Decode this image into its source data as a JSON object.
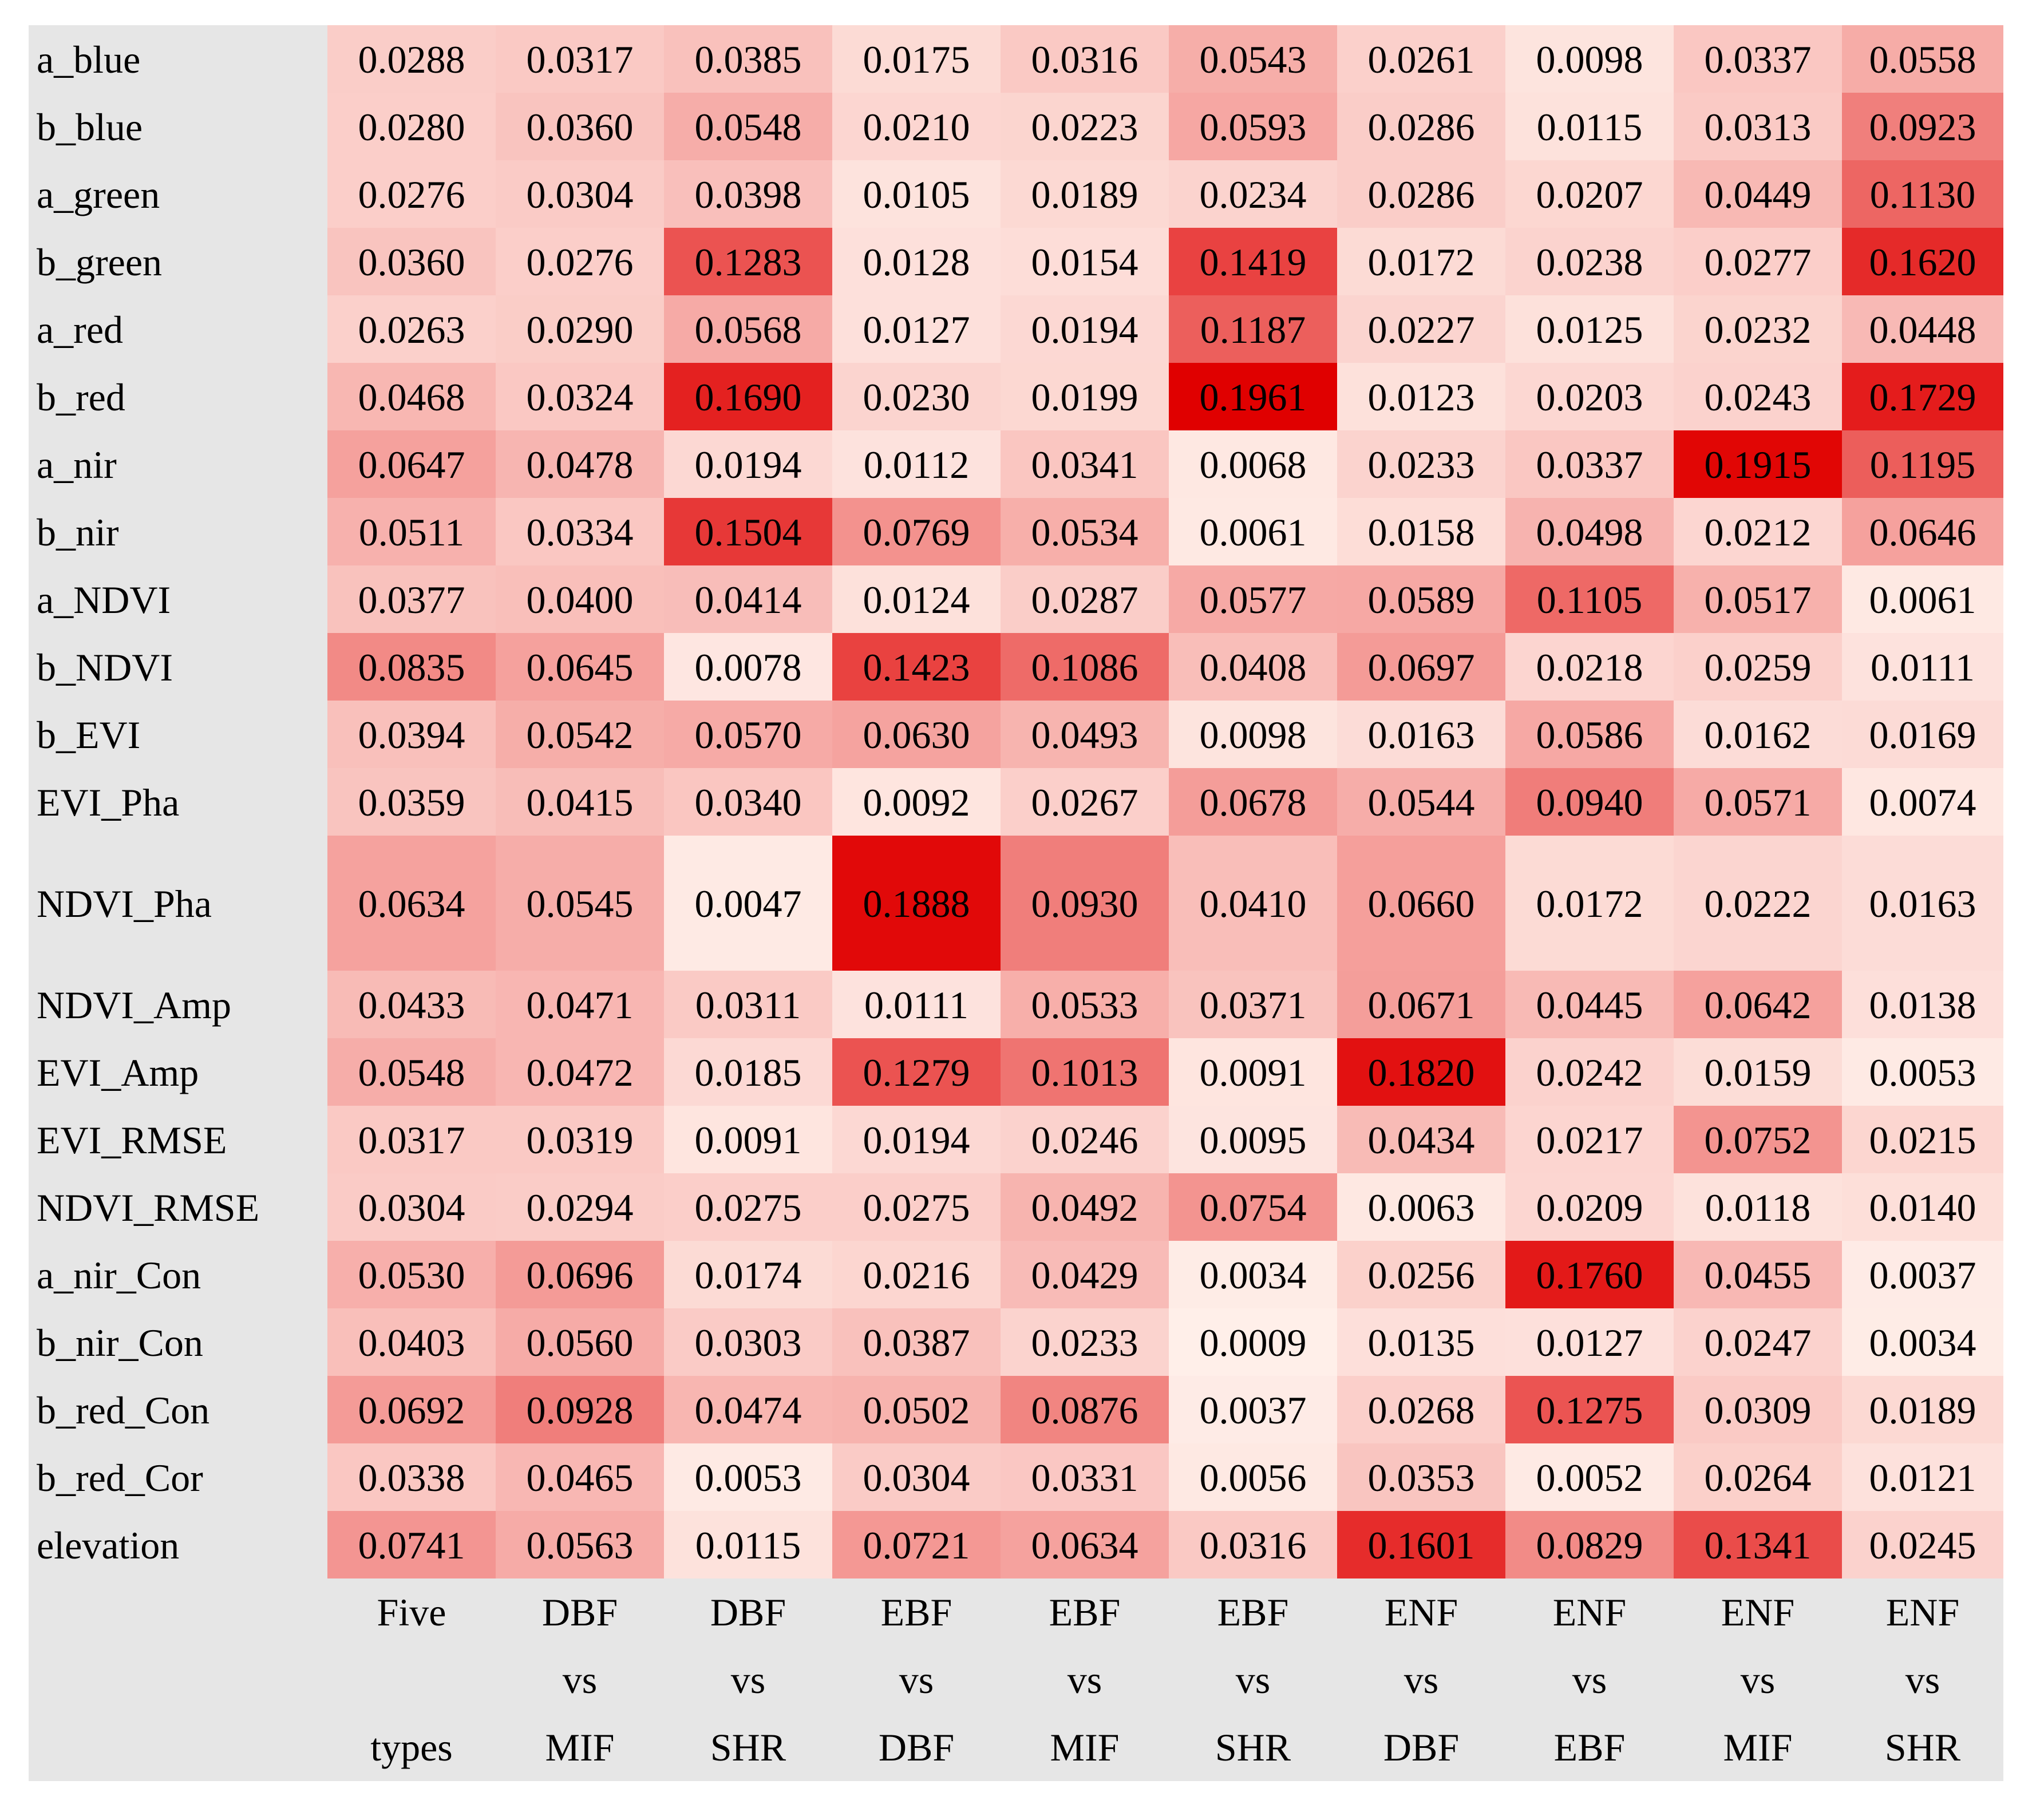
{
  "chart_data": {
    "type": "heatmap",
    "title": "",
    "colorscale": {
      "low": "#fff0ea",
      "high": "#e00000",
      "vmin": 0.0,
      "vmax": 0.1961
    },
    "columns": [
      {
        "line1": "Five",
        "line2": "",
        "line3": "types"
      },
      {
        "line1": "DBF",
        "line2": "vs",
        "line3": "MIF"
      },
      {
        "line1": "DBF",
        "line2": "vs",
        "line3": "SHR"
      },
      {
        "line1": "EBF",
        "line2": "vs",
        "line3": "DBF"
      },
      {
        "line1": "EBF",
        "line2": "vs",
        "line3": "MIF"
      },
      {
        "line1": "EBF",
        "line2": "vs",
        "line3": "SHR"
      },
      {
        "line1": "ENF",
        "line2": "vs",
        "line3": "DBF"
      },
      {
        "line1": "ENF",
        "line2": "vs",
        "line3": "EBF"
      },
      {
        "line1": "ENF",
        "line2": "vs",
        "line3": "MIF"
      },
      {
        "line1": "ENF",
        "line2": "vs",
        "line3": "SHR"
      }
    ],
    "rows": [
      {
        "label": "a_blue",
        "values": [
          "0.0288",
          "0.0317",
          "0.0385",
          "0.0175",
          "0.0316",
          "0.0543",
          "0.0261",
          "0.0098",
          "0.0337",
          "0.0558"
        ]
      },
      {
        "label": "b_blue",
        "values": [
          "0.0280",
          "0.0360",
          "0.0548",
          "0.0210",
          "0.0223",
          "0.0593",
          "0.0286",
          "0.0115",
          "0.0313",
          "0.0923"
        ]
      },
      {
        "label": "a_green",
        "values": [
          "0.0276",
          "0.0304",
          "0.0398",
          "0.0105",
          "0.0189",
          "0.0234",
          "0.0286",
          "0.0207",
          "0.0449",
          "0.1130"
        ]
      },
      {
        "label": "b_green",
        "values": [
          "0.0360",
          "0.0276",
          "0.1283",
          "0.0128",
          "0.0154",
          "0.1419",
          "0.0172",
          "0.0238",
          "0.0277",
          "0.1620"
        ]
      },
      {
        "label": "a_red",
        "values": [
          "0.0263",
          "0.0290",
          "0.0568",
          "0.0127",
          "0.0194",
          "0.1187",
          "0.0227",
          "0.0125",
          "0.0232",
          "0.0448"
        ]
      },
      {
        "label": "b_red",
        "values": [
          "0.0468",
          "0.0324",
          "0.1690",
          "0.0230",
          "0.0199",
          "0.1961",
          "0.0123",
          "0.0203",
          "0.0243",
          "0.1729"
        ]
      },
      {
        "label": "a_nir",
        "values": [
          "0.0647",
          "0.0478",
          "0.0194",
          "0.0112",
          "0.0341",
          "0.0068",
          "0.0233",
          "0.0337",
          "0.1915",
          "0.1195"
        ]
      },
      {
        "label": "b_nir",
        "values": [
          "0.0511",
          "0.0334",
          "0.1504",
          "0.0769",
          "0.0534",
          "0.0061",
          "0.0158",
          "0.0498",
          "0.0212",
          "0.0646"
        ]
      },
      {
        "label": "a_NDVI",
        "values": [
          "0.0377",
          "0.0400",
          "0.0414",
          "0.0124",
          "0.0287",
          "0.0577",
          "0.0589",
          "0.1105",
          "0.0517",
          "0.0061"
        ]
      },
      {
        "label": "b_NDVI",
        "values": [
          "0.0835",
          "0.0645",
          "0.0078",
          "0.1423",
          "0.1086",
          "0.0408",
          "0.0697",
          "0.0218",
          "0.0259",
          "0.0111"
        ]
      },
      {
        "label": "b_EVI",
        "values": [
          "0.0394",
          "0.0542",
          "0.0570",
          "0.0630",
          "0.0493",
          "0.0098",
          "0.0163",
          "0.0586",
          "0.0162",
          "0.0169"
        ]
      },
      {
        "label": "EVI_Pha",
        "values": [
          "0.0359",
          "0.0415",
          "0.0340",
          "0.0092",
          "0.0267",
          "0.0678",
          "0.0544",
          "0.0940",
          "0.0571",
          "0.0074"
        ]
      },
      {
        "label": "NDVI_Pha",
        "values": [
          "0.0634",
          "0.0545",
          "0.0047",
          "0.1888",
          "0.0930",
          "0.0410",
          "0.0660",
          "0.0172",
          "0.0222",
          "0.0163"
        ]
      },
      {
        "label": "NDVI_Amp",
        "values": [
          "0.0433",
          "0.0471",
          "0.0311",
          "0.0111",
          "0.0533",
          "0.0371",
          "0.0671",
          "0.0445",
          "0.0642",
          "0.0138"
        ]
      },
      {
        "label": "EVI_Amp",
        "values": [
          "0.0548",
          "0.0472",
          "0.0185",
          "0.1279",
          "0.1013",
          "0.0091",
          "0.1820",
          "0.0242",
          "0.0159",
          "0.0053"
        ]
      },
      {
        "label": "EVI_RMSE",
        "values": [
          "0.0317",
          "0.0319",
          "0.0091",
          "0.0194",
          "0.0246",
          "0.0095",
          "0.0434",
          "0.0217",
          "0.0752",
          "0.0215"
        ]
      },
      {
        "label": "NDVI_RMSE",
        "values": [
          "0.0304",
          "0.0294",
          "0.0275",
          "0.0275",
          "0.0492",
          "0.0754",
          "0.0063",
          "0.0209",
          "0.0118",
          "0.0140"
        ]
      },
      {
        "label": "a_nir_Con",
        "values": [
          "0.0530",
          "0.0696",
          "0.0174",
          "0.0216",
          "0.0429",
          "0.0034",
          "0.0256",
          "0.1760",
          "0.0455",
          "0.0037"
        ]
      },
      {
        "label": "b_nir_Con",
        "values": [
          "0.0403",
          "0.0560",
          "0.0303",
          "0.0387",
          "0.0233",
          "0.0009",
          "0.0135",
          "0.0127",
          "0.0247",
          "0.0034"
        ]
      },
      {
        "label": "b_red_Con",
        "values": [
          "0.0692",
          "0.0928",
          "0.0474",
          "0.0502",
          "0.0876",
          "0.0037",
          "0.0268",
          "0.1275",
          "0.0309",
          "0.0189"
        ]
      },
      {
        "label": "b_red_Cor",
        "values": [
          "0.0338",
          "0.0465",
          "0.0053",
          "0.0304",
          "0.0331",
          "0.0056",
          "0.0353",
          "0.0052",
          "0.0264",
          "0.0121"
        ]
      },
      {
        "label": "elevation",
        "values": [
          "0.0741",
          "0.0563",
          "0.0115",
          "0.0721",
          "0.0634",
          "0.0316",
          "0.1601",
          "0.0829",
          "0.1341",
          "0.0245"
        ]
      }
    ]
  }
}
